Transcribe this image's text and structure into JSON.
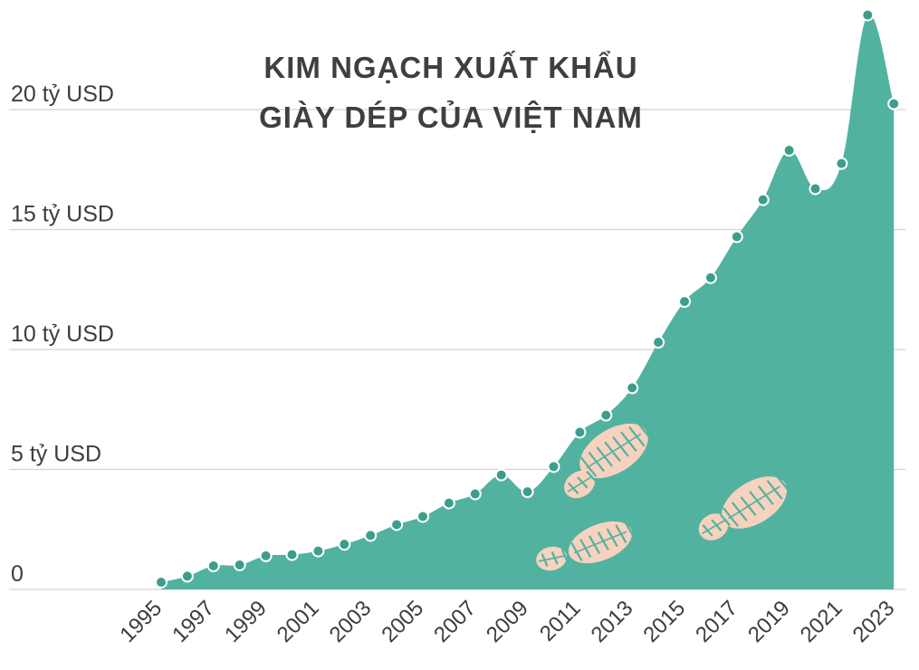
{
  "chart_data": {
    "type": "area",
    "title_lines": [
      "KIM NGẠCH XUẤT KHẨU",
      "GIÀY DÉP CỦA VIỆT NAM"
    ],
    "xlabel": "",
    "ylabel": "",
    "ylim": [
      0,
      24
    ],
    "yticks": [
      {
        "value": 0,
        "label": "0"
      },
      {
        "value": 5,
        "label": "5 tỷ USD"
      },
      {
        "value": 10,
        "label": "10 tỷ USD"
      },
      {
        "value": 15,
        "label": "15 tỷ USD"
      },
      {
        "value": 20,
        "label": "20 tỷ USD"
      }
    ],
    "xtick_labels": [
      "1995",
      "1997",
      "1999",
      "2001",
      "2003",
      "2005",
      "2007",
      "2009",
      "2011",
      "2013",
      "2015",
      "2017",
      "2019",
      "2021",
      "2023"
    ],
    "grid": true,
    "x": [
      1995,
      1996,
      1997,
      1998,
      1999,
      2000,
      2001,
      2002,
      2003,
      2004,
      2005,
      2006,
      2007,
      2008,
      2009,
      2010,
      2011,
      2012,
      2013,
      2014,
      2015,
      2016,
      2017,
      2018,
      2019,
      2020,
      2021,
      2022,
      2023
    ],
    "values": [
      0.3,
      0.55,
      0.98,
      1.02,
      1.4,
      1.45,
      1.6,
      1.88,
      2.25,
      2.7,
      3.04,
      3.6,
      3.98,
      4.77,
      4.07,
      5.12,
      6.55,
      7.26,
      8.4,
      10.3,
      12.0,
      12.99,
      14.7,
      16.24,
      18.3,
      16.7,
      17.75,
      23.94,
      20.24
    ],
    "colors": {
      "area": "#52b2a0",
      "point": "#3d9d8b",
      "point_stroke": "#ffffff",
      "footprint": "#f6d2bf",
      "grid": "#d4d4d4"
    },
    "decorations": [
      "footprint-icon",
      "footprint-icon",
      "footprint-icon",
      "footprint-icon",
      "footprint-icon",
      "footprint-icon"
    ]
  }
}
